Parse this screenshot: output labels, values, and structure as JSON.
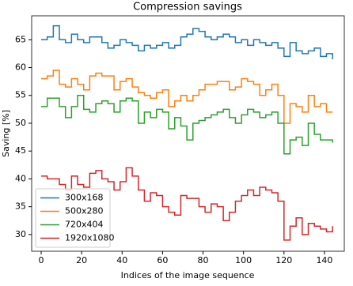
{
  "chart_data": {
    "type": "step",
    "title": "Compression savings",
    "xlabel": "Indices of the image sequence",
    "ylabel": "Saving [%]",
    "x": [
      0,
      3,
      6,
      9,
      12,
      15,
      18,
      21,
      24,
      27,
      30,
      33,
      36,
      39,
      42,
      45,
      48,
      51,
      54,
      57,
      60,
      63,
      66,
      69,
      72,
      75,
      78,
      81,
      84,
      87,
      90,
      93,
      96,
      99,
      102,
      105,
      108,
      111,
      114,
      117,
      120,
      123,
      126,
      129,
      132,
      135,
      138,
      141,
      144
    ],
    "series": [
      {
        "name": "300x168",
        "color": "#1f77b4",
        "values": [
          65,
          65.5,
          67.5,
          65,
          64.5,
          66,
          65,
          64.5,
          65.5,
          65.5,
          64.5,
          63.5,
          64,
          65,
          64.5,
          64,
          63,
          64,
          63.5,
          64,
          64.5,
          63.5,
          64,
          65.5,
          66,
          67,
          66.5,
          65.5,
          65,
          65.5,
          66,
          65.5,
          64.5,
          65,
          64,
          65,
          64.5,
          64,
          64.5,
          63.5,
          62,
          64.5,
          63,
          62.5,
          63,
          63.5,
          62,
          62.5,
          61.5
        ]
      },
      {
        "name": "500x280",
        "color": "#ff7f0e",
        "values": [
          58,
          58.5,
          59.5,
          57,
          56.5,
          58,
          57,
          56,
          58.5,
          59,
          58.5,
          58.5,
          56,
          57.5,
          58,
          56.5,
          55.5,
          55,
          54.5,
          55.5,
          56,
          53,
          54,
          55,
          54,
          55,
          56,
          57,
          57,
          57.5,
          57.5,
          56,
          56.5,
          58,
          57.5,
          57,
          55,
          56,
          57,
          55,
          50,
          53.5,
          53,
          52,
          55,
          53,
          53.5,
          52,
          52
        ]
      },
      {
        "name": "720x404",
        "color": "#2ca02c",
        "values": [
          53,
          54.5,
          54.5,
          53,
          51,
          53,
          55,
          52.5,
          52,
          53.5,
          54,
          53.5,
          52,
          54,
          54.5,
          54,
          50,
          52,
          51,
          52.5,
          52,
          49,
          51,
          49.5,
          47,
          50,
          50.5,
          51,
          51.5,
          52,
          52.5,
          51,
          50,
          51.5,
          52.5,
          52,
          51,
          51.5,
          52,
          50,
          44.5,
          47,
          47.5,
          46,
          50,
          48,
          47,
          47,
          46.5
        ]
      },
      {
        "name": "1920x1080",
        "color": "#d62728",
        "values": [
          40.5,
          40,
          40,
          39,
          38,
          40.5,
          39,
          38.5,
          41,
          41.5,
          40,
          39.5,
          38,
          39.5,
          42,
          40.5,
          38,
          36,
          37.5,
          37,
          35,
          34,
          33.5,
          37,
          36.5,
          36.5,
          35,
          34,
          35.5,
          35,
          32.5,
          34,
          36,
          37,
          38,
          37,
          38.5,
          38,
          37.5,
          36,
          29,
          31.5,
          33,
          30,
          32,
          31.5,
          31,
          30.5,
          31.5
        ]
      }
    ],
    "xlim": [
      -4.7,
      149.8
    ],
    "ylim": [
      27,
      69.3
    ],
    "xticks": [
      0,
      20,
      40,
      60,
      80,
      100,
      120,
      140
    ],
    "yticks": [
      30,
      35,
      40,
      45,
      50,
      55,
      60,
      65
    ],
    "legend": "lower left"
  }
}
